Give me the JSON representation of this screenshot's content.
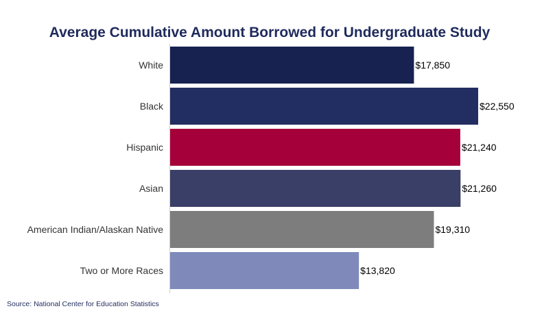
{
  "chart_data": {
    "type": "bar",
    "orientation": "horizontal",
    "title": "Average Cumulative Amount Borrowed for Undergraduate Study",
    "categories": [
      "White",
      "Black",
      "Hispanic",
      "Asian",
      "American Indian/Alaskan Native",
      "Two or More Races"
    ],
    "values": [
      17850,
      22550,
      21240,
      21260,
      19310,
      13820
    ],
    "value_labels": [
      "$17,850",
      "$22,550",
      "$21,240",
      "$21,260",
      "$19,310",
      "$13,820"
    ],
    "bar_colors": [
      "#172251",
      "#222d62",
      "#a5003a",
      "#393f66",
      "#7d7d7d",
      "#7f8abb"
    ],
    "xlim": [
      0,
      22550
    ],
    "grid": false,
    "legend": "none"
  },
  "source": "Source: National Center for Education Statistics",
  "colors": {
    "title": "#1f2a5c",
    "source": "#1f2a5c",
    "axis": "#d0d0d0"
  }
}
